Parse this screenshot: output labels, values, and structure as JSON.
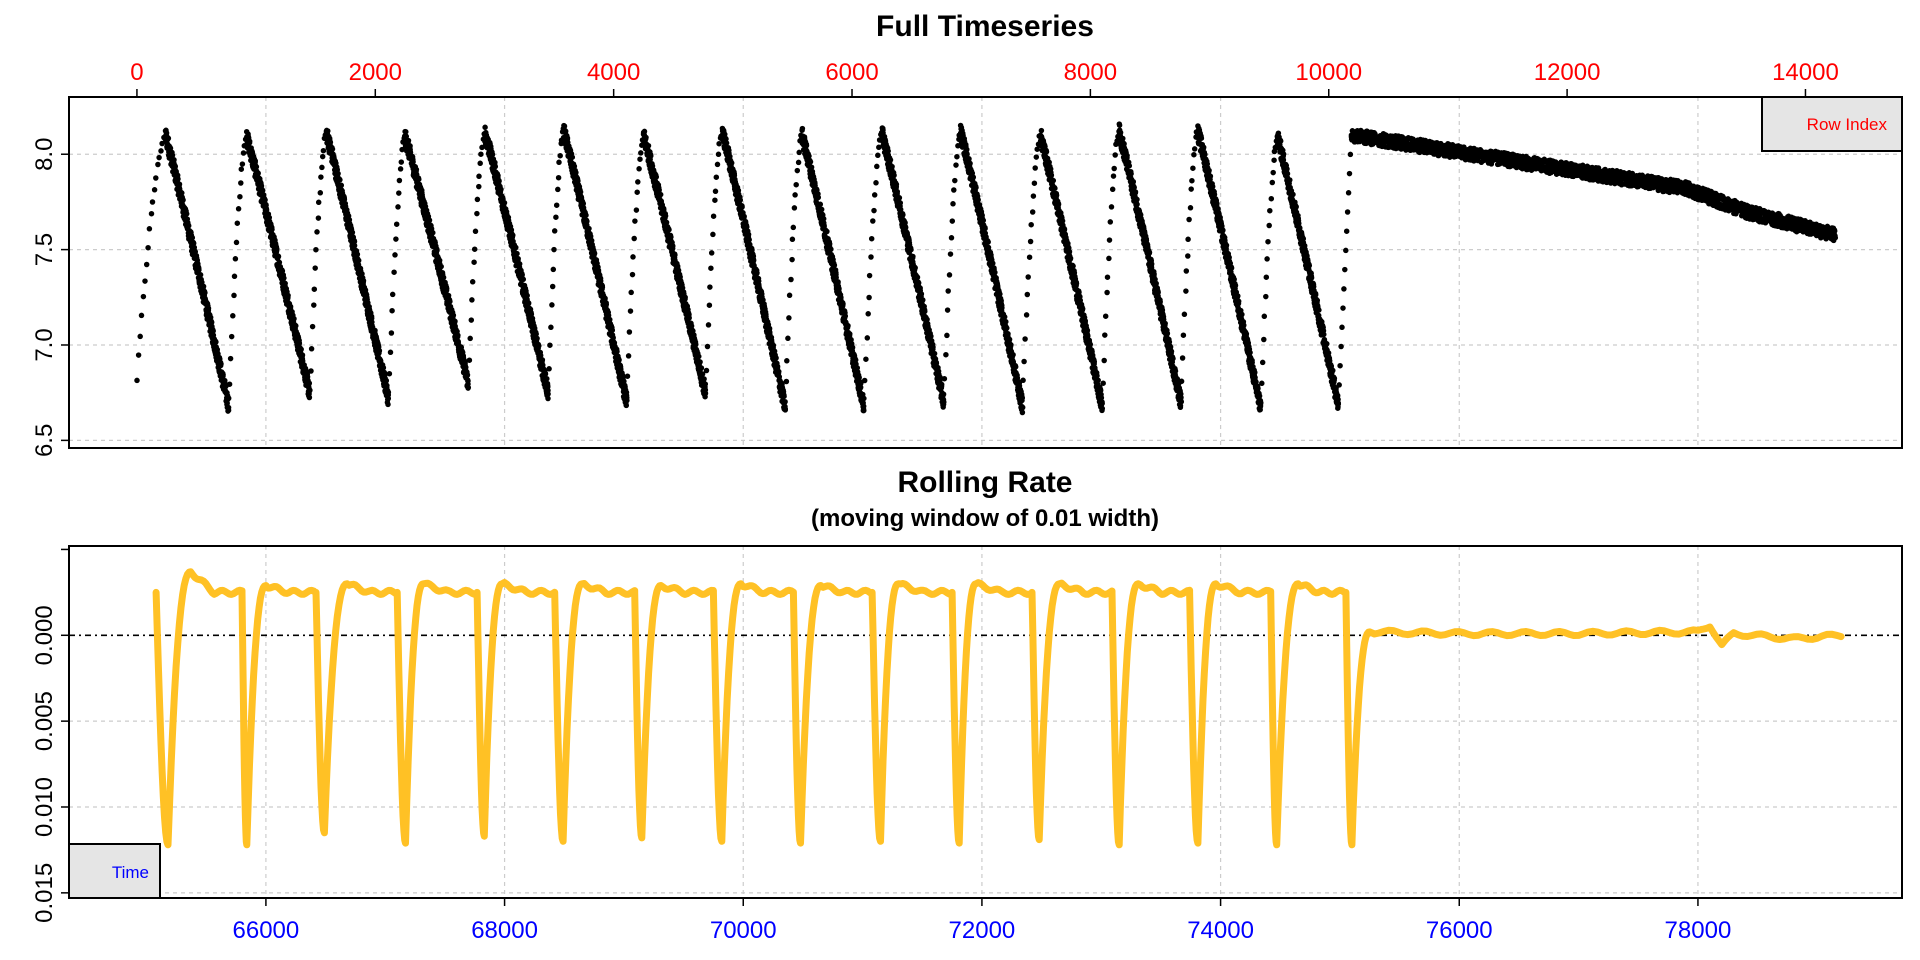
{
  "colors": {
    "timeseries_points": "#000000",
    "rate_line": "#FFC125",
    "row_index_axis": "#FF0000",
    "time_axis": "#0000FF",
    "grid": "#CCCCCC",
    "legend_fill": "#E5E5E5"
  },
  "chart_data": [
    {
      "type": "scatter",
      "title": "Full Timeseries",
      "xlabel": "",
      "ylabel": "",
      "top_axis_label": "Row Index",
      "top_axis_ticks": [
        "0",
        "2000",
        "4000",
        "6000",
        "8000",
        "10000",
        "12000",
        "14000"
      ],
      "y_ticks": [
        "6.5",
        "7.0",
        "7.5",
        "8.0"
      ],
      "xlim": [
        -570,
        14810
      ],
      "ylim": [
        6.46,
        8.3
      ],
      "grid": true,
      "series": [
        {
          "cycles": [
            {
              "x_start": 0,
              "y_start": 6.82,
              "x_peak": 240,
              "y_peak": 8.1,
              "x_min": 770,
              "y_min": 6.68
            },
            {
              "x_start": 770,
              "y_start": 6.68,
              "x_peak": 920,
              "y_peak": 8.09,
              "x_min": 1450,
              "y_min": 6.75
            },
            {
              "x_start": 1450,
              "y_start": 6.75,
              "x_peak": 1590,
              "y_peak": 8.11,
              "x_min": 2110,
              "y_min": 6.72
            },
            {
              "x_start": 2110,
              "y_start": 6.72,
              "x_peak": 2250,
              "y_peak": 8.09,
              "x_min": 2780,
              "y_min": 6.8
            },
            {
              "x_start": 2780,
              "y_start": 6.8,
              "x_peak": 2920,
              "y_peak": 8.11,
              "x_min": 3450,
              "y_min": 6.75
            },
            {
              "x_start": 3450,
              "y_start": 6.75,
              "x_peak": 3580,
              "y_peak": 8.12,
              "x_min": 4110,
              "y_min": 6.7
            },
            {
              "x_start": 4110,
              "y_start": 6.7,
              "x_peak": 4250,
              "y_peak": 8.1,
              "x_min": 4770,
              "y_min": 6.75
            },
            {
              "x_start": 4770,
              "y_start": 6.75,
              "x_peak": 4910,
              "y_peak": 8.12,
              "x_min": 5440,
              "y_min": 6.67
            },
            {
              "x_start": 5440,
              "y_start": 6.67,
              "x_peak": 5580,
              "y_peak": 8.1,
              "x_min": 6100,
              "y_min": 6.68
            },
            {
              "x_start": 6100,
              "y_start": 6.68,
              "x_peak": 6250,
              "y_peak": 8.11,
              "x_min": 6770,
              "y_min": 6.7
            },
            {
              "x_start": 6770,
              "y_start": 6.7,
              "x_peak": 6910,
              "y_peak": 8.12,
              "x_min": 7430,
              "y_min": 6.68
            },
            {
              "x_start": 7430,
              "y_start": 6.68,
              "x_peak": 7580,
              "y_peak": 8.1,
              "x_min": 8100,
              "y_min": 6.68
            },
            {
              "x_start": 8100,
              "y_start": 6.68,
              "x_peak": 8240,
              "y_peak": 8.12,
              "x_min": 8760,
              "y_min": 6.7
            },
            {
              "x_start": 8760,
              "y_start": 6.7,
              "x_peak": 8900,
              "y_peak": 8.12,
              "x_min": 9430,
              "y_min": 6.67
            },
            {
              "x_start": 9430,
              "y_start": 6.67,
              "x_peak": 9570,
              "y_peak": 8.09,
              "x_min": 10080,
              "y_min": 6.69
            }
          ],
          "tail": [
            {
              "x": 10080,
              "y": 6.69
            },
            {
              "x": 10190,
              "y": 8.1
            },
            {
              "x": 11000,
              "y": 8.02
            },
            {
              "x": 12000,
              "y": 7.92
            },
            {
              "x": 13000,
              "y": 7.82
            },
            {
              "x": 13500,
              "y": 7.7
            },
            {
              "x": 14100,
              "y": 7.6
            },
            {
              "x": 14250,
              "y": 7.58
            }
          ]
        }
      ]
    },
    {
      "type": "line",
      "title": "Rolling Rate",
      "subtitle": "(moving window of 0.01 width)",
      "xlabel": "",
      "ylabel": "",
      "bottom_axis_label": "Time",
      "x_ticks": [
        "66000",
        "68000",
        "70000",
        "72000",
        "74000",
        "76000",
        "78000"
      ],
      "y_ticks": [
        "0.000",
        "0.005",
        "0.010",
        "0.015"
      ],
      "y_axis_reversed": true,
      "xlim": [
        64350,
        79710
      ],
      "ylim": [
        -0.0052,
        0.0153
      ],
      "reference_line_y": 0,
      "grid": true,
      "series": [
        {
          "cycles": [
            {
              "x_start": 65080,
              "x_trough": 65180,
              "y_trough": 0.0122,
              "x_peak": 65370,
              "y_peak": -0.0037
            },
            {
              "x_start": 65800,
              "x_trough": 65840,
              "y_trough": 0.0122,
              "x_peak": 66000,
              "y_peak": -0.0029
            },
            {
              "x_start": 66420,
              "x_trough": 66490,
              "y_trough": 0.0115,
              "x_peak": 66680,
              "y_peak": -0.003
            },
            {
              "x_start": 67100,
              "x_trough": 67170,
              "y_trough": 0.0121,
              "x_peak": 67320,
              "y_peak": -0.003
            },
            {
              "x_start": 67770,
              "x_trough": 67830,
              "y_trough": 0.0117,
              "x_peak": 67980,
              "y_peak": -0.003
            },
            {
              "x_start": 68420,
              "x_trough": 68490,
              "y_trough": 0.012,
              "x_peak": 68650,
              "y_peak": -0.003
            },
            {
              "x_start": 69090,
              "x_trough": 69150,
              "y_trough": 0.0118,
              "x_peak": 69310,
              "y_peak": -0.0029
            },
            {
              "x_start": 69750,
              "x_trough": 69820,
              "y_trough": 0.012,
              "x_peak": 69980,
              "y_peak": -0.003
            },
            {
              "x_start": 70420,
              "x_trough": 70480,
              "y_trough": 0.0121,
              "x_peak": 70650,
              "y_peak": -0.0029
            },
            {
              "x_start": 71080,
              "x_trough": 71150,
              "y_trough": 0.012,
              "x_peak": 71300,
              "y_peak": -0.003
            },
            {
              "x_start": 71750,
              "x_trough": 71810,
              "y_trough": 0.0121,
              "x_peak": 71950,
              "y_peak": -0.003
            },
            {
              "x_start": 72420,
              "x_trough": 72480,
              "y_trough": 0.0119,
              "x_peak": 72650,
              "y_peak": -0.003
            },
            {
              "x_start": 73090,
              "x_trough": 73150,
              "y_trough": 0.0122,
              "x_peak": 73310,
              "y_peak": -0.003
            },
            {
              "x_start": 73740,
              "x_trough": 73810,
              "y_trough": 0.0121,
              "x_peak": 73960,
              "y_peak": -0.003
            },
            {
              "x_start": 74420,
              "x_trough": 74470,
              "y_trough": 0.0122,
              "x_peak": 74650,
              "y_peak": -0.003
            },
            {
              "x_start": 75050,
              "x_trough": 75100,
              "y_trough": 0.0122,
              "x_peak": 75250,
              "y_peak": -0.0002
            }
          ],
          "tail": [
            {
              "x": 75250,
              "y": -0.0002
            },
            {
              "x": 76000,
              "y": -0.0001
            },
            {
              "x": 77000,
              "y": -0.0001
            },
            {
              "x": 78000,
              "y": -0.0002
            },
            {
              "x": 78100,
              "y": -0.0006
            },
            {
              "x": 78200,
              "y": 0.0006
            },
            {
              "x": 78300,
              "y": -0.0001
            },
            {
              "x": 78800,
              "y": 0.0002
            },
            {
              "x": 79200,
              "y": 0.0
            }
          ]
        }
      ]
    }
  ]
}
